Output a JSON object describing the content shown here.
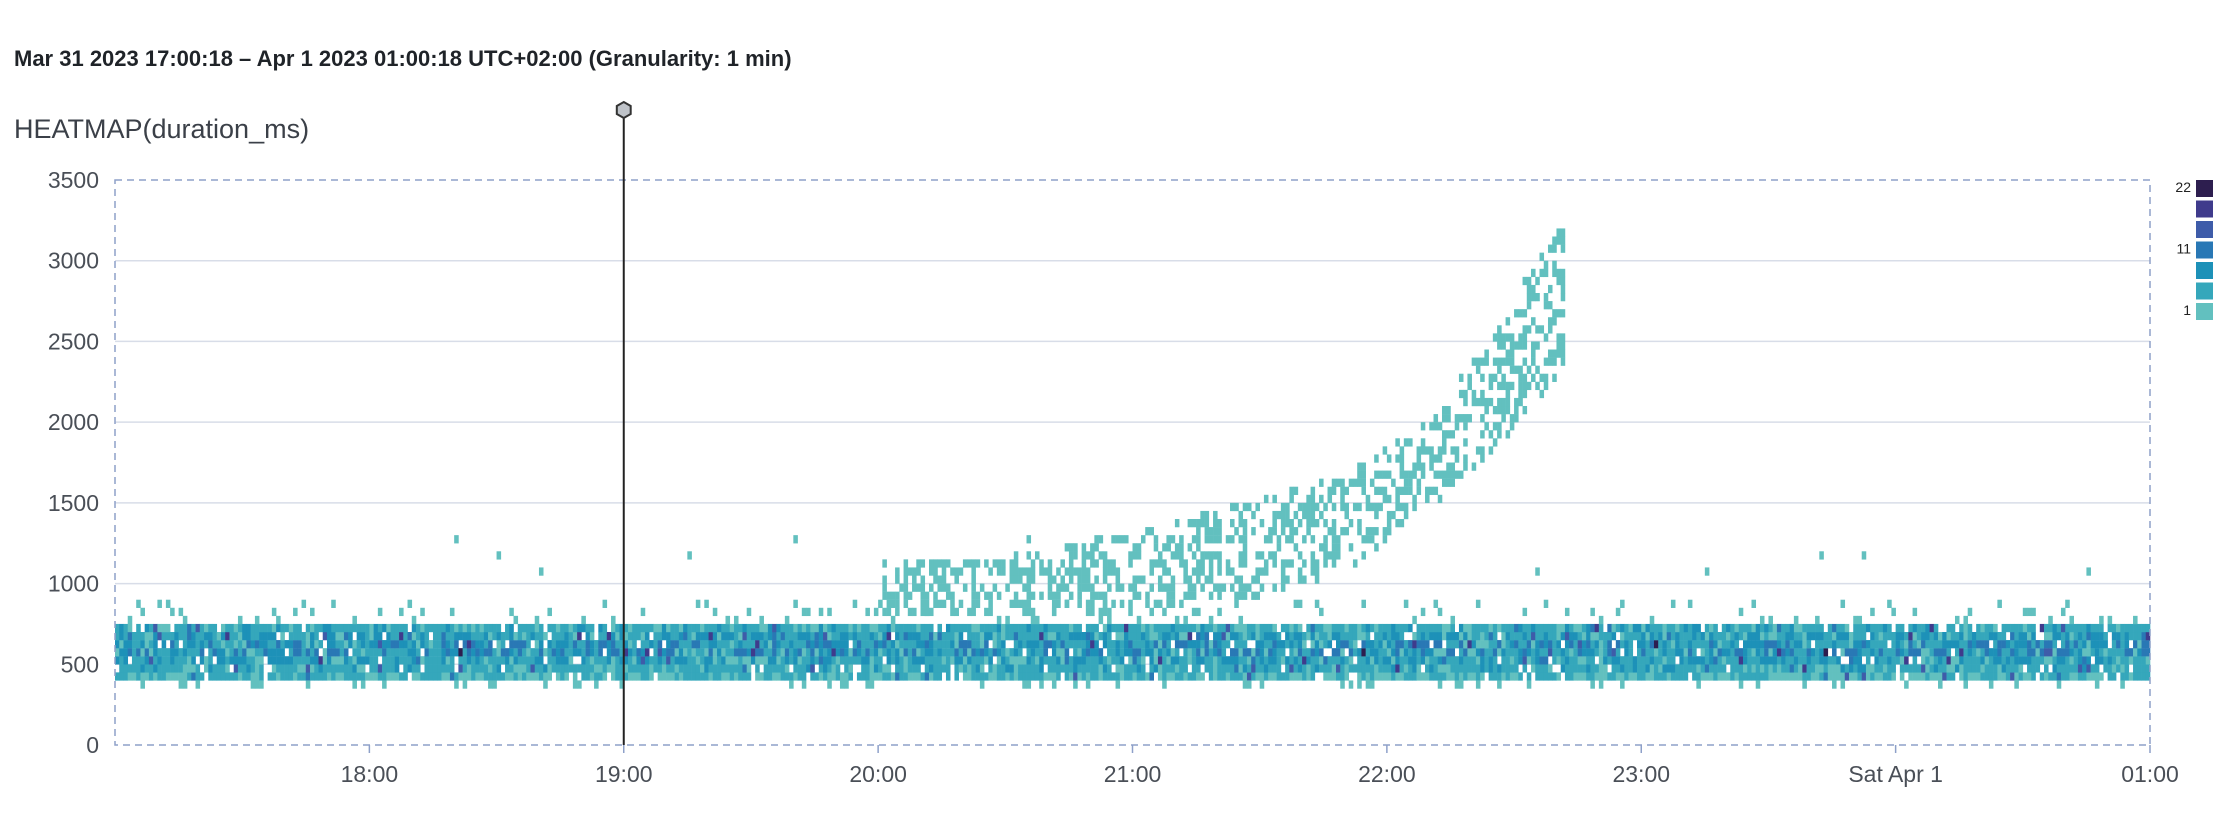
{
  "header": {
    "range_text": "Mar 31 2023 17:00:18 – Apr 1 2023 01:00:18 UTC+02:00 (Granularity: 1 min)"
  },
  "chart_data": {
    "type": "heatmap",
    "title": "HEATMAP(duration_ms)",
    "x_range": [
      "2023-03-31 17:00",
      "2023-04-01 01:00"
    ],
    "x_ticks": [
      {
        "time": "2023-03-31 18:00",
        "label": "18:00"
      },
      {
        "time": "2023-03-31 19:00",
        "label": "19:00"
      },
      {
        "time": "2023-03-31 20:00",
        "label": "20:00"
      },
      {
        "time": "2023-03-31 21:00",
        "label": "21:00"
      },
      {
        "time": "2023-03-31 22:00",
        "label": "22:00"
      },
      {
        "time": "2023-03-31 23:00",
        "label": "23:00"
      },
      {
        "time": "2023-04-01 00:00",
        "label": "Sat Apr 1"
      },
      {
        "time": "2023-04-01 01:00",
        "label": "01:00"
      }
    ],
    "y_ticks": [
      0,
      500,
      1000,
      1500,
      2000,
      2500,
      3000,
      3500
    ],
    "ylim": [
      0,
      3500
    ],
    "bucket_minutes": 1,
    "bucket_ms": 50,
    "grid": true,
    "marker": {
      "time": "2023-03-31 19:00"
    },
    "legend": {
      "placement": "right",
      "labels": [
        "22",
        "11",
        "1"
      ],
      "count_scale": [
        22,
        11,
        1
      ],
      "colors": [
        "#2d1e4f",
        "#3f3b8c",
        "#3e5ca9",
        "#2978b5",
        "#1d91b8",
        "#35a7bb",
        "#62c0bf"
      ]
    },
    "base_band": {
      "ms_min": 400,
      "ms_max": 750,
      "typical_count_range": [
        1,
        22
      ]
    },
    "sparse_cells": [
      {
        "time": "2023-03-31 18:20",
        "ms": 1250,
        "count": 1
      },
      {
        "time": "2023-03-31 18:30",
        "ms": 1150,
        "count": 1
      },
      {
        "time": "2023-03-31 18:40",
        "ms": 1050,
        "count": 1
      },
      {
        "time": "2023-03-31 19:15",
        "ms": 1150,
        "count": 1
      },
      {
        "time": "2023-03-31 19:40",
        "ms": 1250,
        "count": 1
      },
      {
        "time": "2023-03-31 20:35",
        "ms": 1250,
        "count": 1
      },
      {
        "time": "2023-03-31 22:35",
        "ms": 1050,
        "count": 1
      },
      {
        "time": "2023-03-31 23:15",
        "ms": 1050,
        "count": 1
      },
      {
        "time": "2023-03-31 23:42",
        "ms": 1150,
        "count": 1
      },
      {
        "time": "2023-03-31 23:52",
        "ms": 1150,
        "count": 1
      },
      {
        "time": "2023-04-01 00:45",
        "ms": 1050,
        "count": 1
      }
    ],
    "rising_cluster": [
      {
        "time": "2023-03-31 20:00",
        "ms_low": 800,
        "ms_high": 1100
      },
      {
        "time": "2023-03-31 20:30",
        "ms_low": 800,
        "ms_high": 1150
      },
      {
        "time": "2023-03-31 21:00",
        "ms_low": 850,
        "ms_high": 1300
      },
      {
        "time": "2023-03-31 21:30",
        "ms_low": 950,
        "ms_high": 1500
      },
      {
        "time": "2023-03-31 21:50",
        "ms_low": 1100,
        "ms_high": 1650
      },
      {
        "time": "2023-03-31 22:10",
        "ms_low": 1500,
        "ms_high": 2000
      },
      {
        "time": "2023-03-31 22:25",
        "ms_low": 1850,
        "ms_high": 2550
      },
      {
        "time": "2023-03-31 22:40",
        "ms_low": 2300,
        "ms_high": 3200
      }
    ],
    "cluster_end_time": "2023-03-31 22:41"
  }
}
